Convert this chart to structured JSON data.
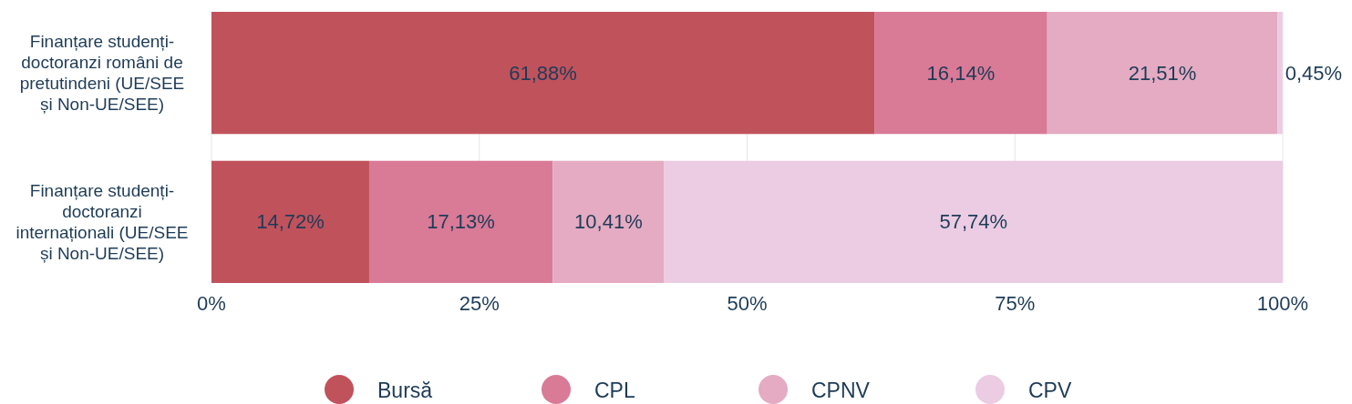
{
  "chart_data": {
    "type": "bar",
    "orientation": "horizontal",
    "stacked": true,
    "categories": [
      "Finanțare studenți-doctoranzi români de pretutindeni (UE/SEE și Non-UE/SEE)",
      "Finanțare studenți-doctoranzi internaționali (UE/SEE și Non-UE/SEE)"
    ],
    "series": [
      {
        "name": "Bursă",
        "color": "#c0525c",
        "values": [
          61.88,
          14.72
        ],
        "value_labels": [
          "61,88%",
          "14,72%"
        ]
      },
      {
        "name": "CPL",
        "color": "#d97a97",
        "values": [
          16.14,
          17.13
        ],
        "value_labels": [
          "16,14%",
          "17,13%"
        ]
      },
      {
        "name": "CPNV",
        "color": "#e4abc2",
        "values": [
          21.51,
          10.41
        ],
        "value_labels": [
          "21,51%",
          "10,41%"
        ]
      },
      {
        "name": "CPV",
        "color": "#ebcce3",
        "values": [
          0.45,
          57.74
        ],
        "value_labels": [
          "0,45%",
          "57,74%"
        ]
      }
    ],
    "xlim": [
      0,
      100
    ],
    "xticks": [
      {
        "value": 0,
        "label": "0%"
      },
      {
        "value": 25,
        "label": "25%"
      },
      {
        "value": 50,
        "label": "50%"
      },
      {
        "value": 75,
        "label": "75%"
      },
      {
        "value": 100,
        "label": "100%"
      }
    ],
    "grid": "x",
    "legend": "bottom"
  }
}
